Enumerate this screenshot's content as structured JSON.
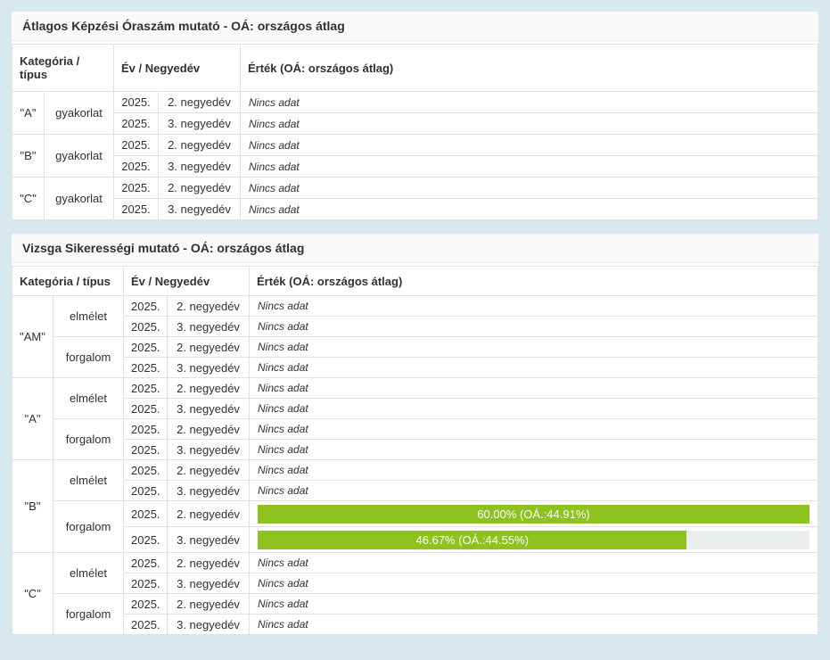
{
  "colors": {
    "page_bg": "#d7e9ee",
    "panel_bg": "#ffffff",
    "title_bg": "#f8f9fa",
    "border": "#dfe2e4",
    "text": "#2f3133",
    "bar_fill": "#8dc21f",
    "bar_track": "#e9edee",
    "bar_text": "#ffffff"
  },
  "tables": [
    {
      "id": "training-hours",
      "title": "Átlagos Képzési Óraszám mutató - OÁ: országos átlag",
      "columns": {
        "category": "Kategória / típus",
        "period": "Év / Negyedév",
        "value": "Érték (OÁ: országos átlag)"
      },
      "groups": [
        {
          "category": "\"A\"",
          "types": [
            {
              "type": "gyakorlat",
              "rows": [
                {
                  "year": "2025.",
                  "quarter": "2. negyedév",
                  "value": {
                    "kind": "no-data",
                    "label": "Nincs adat"
                  }
                },
                {
                  "year": "2025.",
                  "quarter": "3. negyedév",
                  "value": {
                    "kind": "no-data",
                    "label": "Nincs adat"
                  }
                }
              ]
            }
          ]
        },
        {
          "category": "\"B\"",
          "types": [
            {
              "type": "gyakorlat",
              "rows": [
                {
                  "year": "2025.",
                  "quarter": "2. negyedév",
                  "value": {
                    "kind": "no-data",
                    "label": "Nincs adat"
                  }
                },
                {
                  "year": "2025.",
                  "quarter": "3. negyedév",
                  "value": {
                    "kind": "no-data",
                    "label": "Nincs adat"
                  }
                }
              ]
            }
          ]
        },
        {
          "category": "\"C\"",
          "types": [
            {
              "type": "gyakorlat",
              "rows": [
                {
                  "year": "2025.",
                  "quarter": "2. negyedév",
                  "value": {
                    "kind": "no-data",
                    "label": "Nincs adat"
                  }
                },
                {
                  "year": "2025.",
                  "quarter": "3. negyedév",
                  "value": {
                    "kind": "no-data",
                    "label": "Nincs adat"
                  }
                }
              ]
            }
          ]
        }
      ]
    },
    {
      "id": "exam-success",
      "title": "Vizsga Sikerességi mutató - OÁ: országos átlag",
      "columns": {
        "category": "Kategória / típus",
        "period": "Év / Negyedév",
        "value": "Érték (OÁ: országos átlag)"
      },
      "groups": [
        {
          "category": "\"AM\"",
          "types": [
            {
              "type": "elmélet",
              "rows": [
                {
                  "year": "2025.",
                  "quarter": "2. negyedév",
                  "value": {
                    "kind": "no-data",
                    "label": "Nincs adat"
                  }
                },
                {
                  "year": "2025.",
                  "quarter": "3. negyedév",
                  "value": {
                    "kind": "no-data",
                    "label": "Nincs adat"
                  }
                }
              ]
            },
            {
              "type": "forgalom",
              "rows": [
                {
                  "year": "2025.",
                  "quarter": "2. negyedév",
                  "value": {
                    "kind": "no-data",
                    "label": "Nincs adat"
                  }
                },
                {
                  "year": "2025.",
                  "quarter": "3. negyedév",
                  "value": {
                    "kind": "no-data",
                    "label": "Nincs adat"
                  }
                }
              ]
            }
          ]
        },
        {
          "category": "\"A\"",
          "types": [
            {
              "type": "elmélet",
              "rows": [
                {
                  "year": "2025.",
                  "quarter": "2. negyedév",
                  "value": {
                    "kind": "no-data",
                    "label": "Nincs adat"
                  }
                },
                {
                  "year": "2025.",
                  "quarter": "3. negyedév",
                  "value": {
                    "kind": "no-data",
                    "label": "Nincs adat"
                  }
                }
              ]
            },
            {
              "type": "forgalom",
              "rows": [
                {
                  "year": "2025.",
                  "quarter": "2. negyedév",
                  "value": {
                    "kind": "no-data",
                    "label": "Nincs adat"
                  }
                },
                {
                  "year": "2025.",
                  "quarter": "3. negyedév",
                  "value": {
                    "kind": "no-data",
                    "label": "Nincs adat"
                  }
                }
              ]
            }
          ]
        },
        {
          "category": "\"B\"",
          "types": [
            {
              "type": "elmélet",
              "rows": [
                {
                  "year": "2025.",
                  "quarter": "2. negyedév",
                  "value": {
                    "kind": "no-data",
                    "label": "Nincs adat"
                  }
                },
                {
                  "year": "2025.",
                  "quarter": "3. negyedév",
                  "value": {
                    "kind": "no-data",
                    "label": "Nincs adat"
                  }
                }
              ]
            },
            {
              "type": "forgalom",
              "rows": [
                {
                  "year": "2025.",
                  "quarter": "2. negyedév",
                  "value": {
                    "kind": "bar",
                    "label": "60.00% (OÁ.:44.91%)",
                    "percent": 60.0,
                    "oa_percent": 44.91
                  }
                },
                {
                  "year": "2025.",
                  "quarter": "3. negyedév",
                  "value": {
                    "kind": "bar",
                    "label": "46.67% (OÁ.:44.55%)",
                    "percent": 46.67,
                    "oa_percent": 44.55
                  }
                }
              ]
            }
          ]
        },
        {
          "category": "\"C\"",
          "types": [
            {
              "type": "elmélet",
              "rows": [
                {
                  "year": "2025.",
                  "quarter": "2. negyedév",
                  "value": {
                    "kind": "no-data",
                    "label": "Nincs adat"
                  }
                },
                {
                  "year": "2025.",
                  "quarter": "3. negyedév",
                  "value": {
                    "kind": "no-data",
                    "label": "Nincs adat"
                  }
                }
              ]
            },
            {
              "type": "forgalom",
              "rows": [
                {
                  "year": "2025.",
                  "quarter": "2. negyedév",
                  "value": {
                    "kind": "no-data",
                    "label": "Nincs adat"
                  }
                },
                {
                  "year": "2025.",
                  "quarter": "3. negyedév",
                  "value": {
                    "kind": "no-data",
                    "label": "Nincs adat"
                  }
                }
              ]
            }
          ]
        }
      ]
    }
  ]
}
